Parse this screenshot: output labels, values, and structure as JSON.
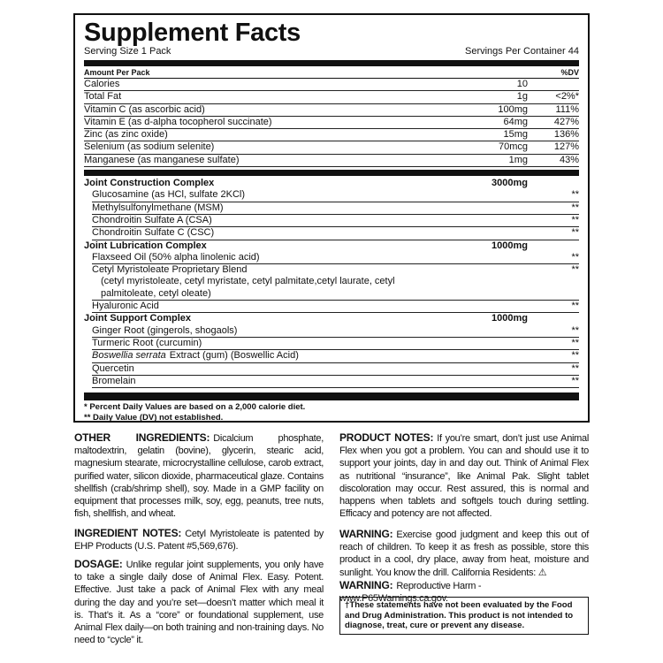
{
  "facts": {
    "title": "Supplement Facts",
    "serving_size": "Serving Size 1 Pack",
    "servings_per_container": "Servings Per Container 44",
    "amount_header": "Amount Per Pack",
    "dv_header": "%DV",
    "nutrients": [
      {
        "name": "Calories",
        "amount": "10"
      },
      {
        "name": "Total Fat",
        "amount": "1g",
        "dv": "<2%*"
      },
      {
        "name": "Vitamin C (as ascorbic acid)",
        "amount": "100mg",
        "dv": "111%"
      },
      {
        "name": "Vitamin E (as d-alpha tocopherol succinate)",
        "amount": "64mg",
        "dv": "427%"
      },
      {
        "name": "Zinc (as zinc oxide)",
        "amount": "15mg",
        "dv": "136%"
      },
      {
        "name": "Selenium (as sodium selenite)",
        "amount": "70mcg",
        "dv": "127%"
      },
      {
        "name": "Manganese (as manganese sulfate)",
        "amount": "1mg",
        "dv": "43%"
      }
    ],
    "blends": [
      {
        "name": "Joint Construction Complex",
        "amount": "3000mg",
        "ingredients": [
          {
            "name": "Glucosamine (as HCl, sulfate 2KCl)",
            "dv": "**"
          },
          {
            "name": "Methylsulfonylmethane (MSM)",
            "dv": "**"
          },
          {
            "name": "Chondroitin Sulfate A (CSA)",
            "dv": "**"
          },
          {
            "name": "Chondroitin Sulfate C (CSC)",
            "dv": "**"
          }
        ]
      },
      {
        "name": "Joint Lubrication Complex",
        "amount": "1000mg",
        "ingredients": [
          {
            "name": "Flaxseed Oil (50% alpha linolenic acid)",
            "dv": "**"
          },
          {
            "name": "Cetyl Myristoleate Proprietary Blend",
            "detail": "(cetyl myristoleate, cetyl myristate, cetyl palmitate,cetyl laurate, cetyl palmitoleate, cetyl oleate)",
            "dv": "**"
          },
          {
            "name": "Hyaluronic Acid",
            "dv": "**"
          }
        ]
      },
      {
        "name": "Joint Support Complex",
        "amount": "1000mg",
        "ingredients": [
          {
            "name": "Ginger Root (gingerols, shogaols)",
            "dv": "**"
          },
          {
            "name": "Turmeric Root (curcumin)",
            "dv": "**"
          },
          {
            "name_italic": "Boswellia serrata",
            "name": "Extract (gum) (Boswellic Acid)",
            "dv": "**"
          },
          {
            "name": "Quercetin",
            "dv": "**"
          },
          {
            "name": "Bromelain",
            "dv": "**"
          }
        ]
      }
    ],
    "footnotes": [
      "* Percent Daily Values are based on a 2,000 calorie diet.",
      "** Daily Value (DV) not established."
    ]
  },
  "left_column": [
    {
      "heading": "OTHER INGREDIENTS:",
      "text": "Dicalcium phosphate, maltodextrin, gelatin (bovine), glycerin, stearic acid, magnesium stearate, microcrystalline cellulose, carob extract, purified water, silicon dioxide, pharmaceutical glaze. Contains shellfish (crab/shrimp shell), soy. Made in a GMP facility on equipment that processes milk, soy, egg, peanuts, tree nuts, fish, shellfish, and wheat."
    },
    {
      "heading": "INGREDIENT NOTES:",
      "text": "Cetyl Myristoleate is patented by EHP Products (U.S. Patent #5,569,676)."
    },
    {
      "heading": "DOSAGE:",
      "text": "Unlike regular joint supplements, you only have to take a single daily dose of Animal Flex. Easy. Potent. Effective. Just take a pack of Animal Flex with any meal during the day and you’re set—doesn’t matter which meal it is. That’s it. As a “core” or foundational supplement, use Animal Flex daily—on both training and non-training days. No need to “cycle” it."
    }
  ],
  "right_column": [
    {
      "heading": "PRODUCT NOTES:",
      "text": "If you’re smart, don’t just use Animal Flex when you got a problem. You can and should use it to support your joints, day in and day out. Think of Animal Flex as nutritional “insurance”, like Animal Pak. Slight tablet discoloration may occur. Rest assured, this is normal and happens when tablets and softgels touch during settling. Efficacy and potency are not affected."
    },
    {
      "heading": "WARNING:",
      "text": "Exercise good judgment and keep this out of reach of children. To keep it as fresh as possible, store this product in a cool, dry place, away from heat, moisture and sunlight. You know the drill. California Residents: ⚠",
      "prop65_heading": "WARNING:",
      "prop65_text": "Reproductive Harm - www.P65Warnings.ca.gov."
    }
  ],
  "disclaimer": "†These statements have not been evaluated by the Food and Drug Administration. This product is not intended to diagnose, treat, cure or prevent any disease."
}
